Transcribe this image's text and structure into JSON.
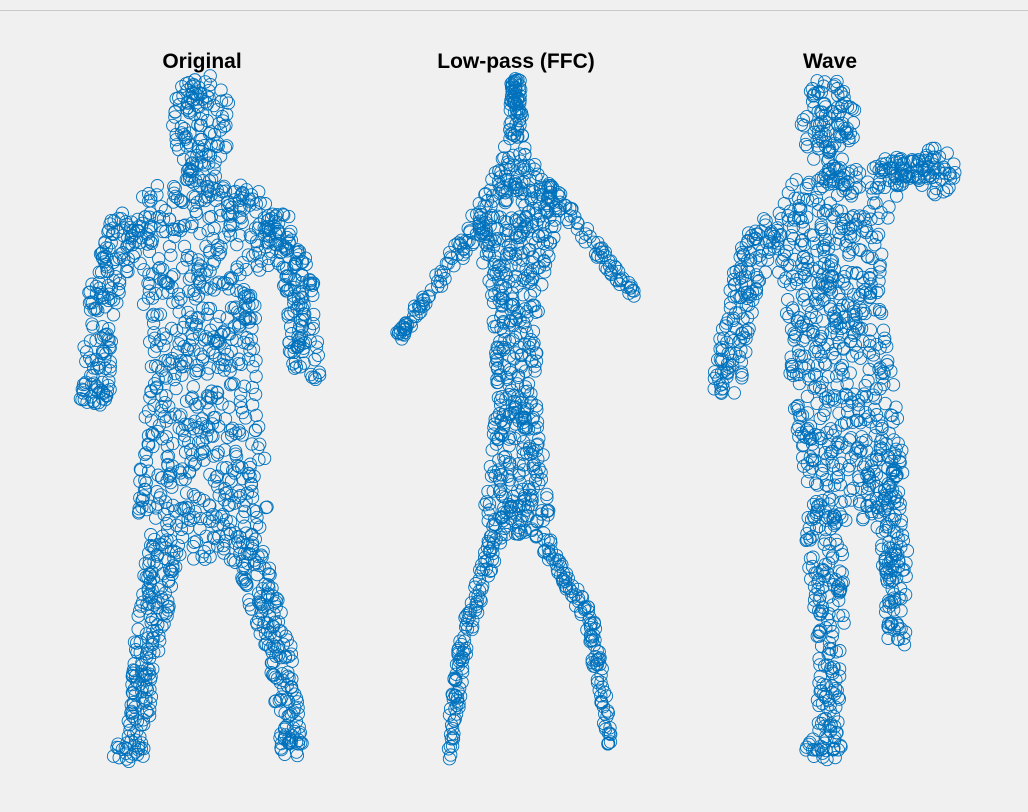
{
  "figure": {
    "marker_color": "#0072BD",
    "background": "#f0f0f0",
    "marker": "open-circle"
  },
  "chart_data": [
    {
      "type": "scatter",
      "title": "Original",
      "xlabel": "",
      "ylabel": "",
      "axes_visible": false,
      "grid": false,
      "xlim": [
        -1,
        1
      ],
      "ylim": [
        -1,
        1
      ],
      "series": [
        {
          "marker": "o",
          "color": "#0072BD",
          "values": []
        }
      ]
    },
    {
      "type": "scatter",
      "title": "Low-pass (FFC)",
      "xlabel": "",
      "ylabel": "",
      "axes_visible": false,
      "grid": false,
      "xlim": [
        -1,
        1
      ],
      "ylim": [
        -1,
        1
      ],
      "series": [
        {
          "marker": "o",
          "color": "#0072BD",
          "values": []
        }
      ]
    },
    {
      "type": "scatter",
      "title": "Wave",
      "xlabel": "",
      "ylabel": "",
      "axes_visible": false,
      "grid": false,
      "xlim": [
        -1,
        1
      ],
      "ylim": [
        -1,
        1
      ],
      "series": [
        {
          "marker": "o",
          "color": "#0072BD",
          "values": []
        }
      ]
    }
  ]
}
